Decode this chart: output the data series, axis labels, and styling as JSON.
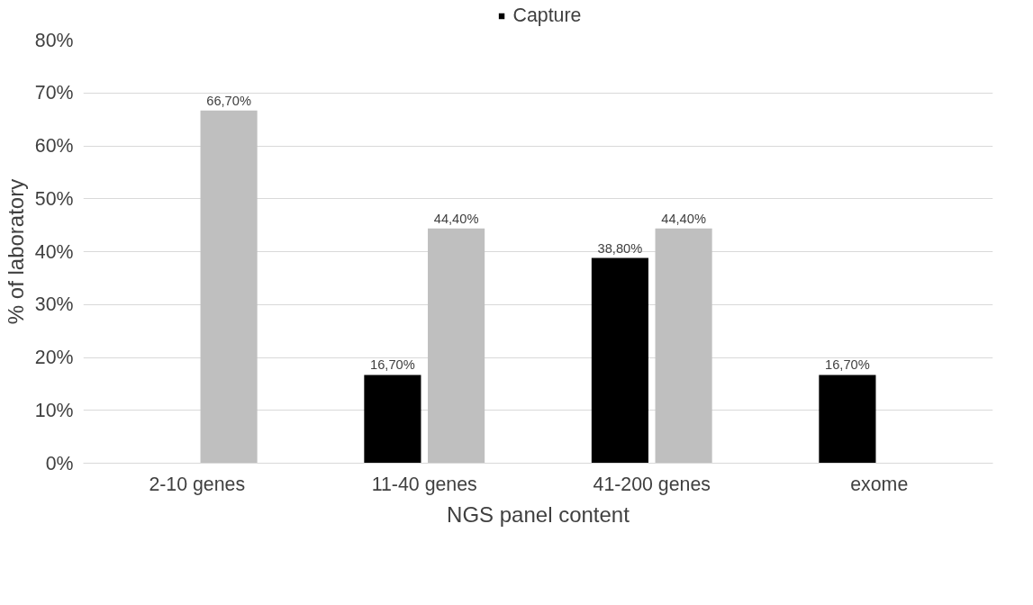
{
  "chart_data": {
    "type": "bar",
    "xlabel": "NGS panel content",
    "ylabel": "% of laboratory",
    "categories": [
      "2-10 genes",
      "11-40 genes",
      "41-200 genes",
      "exome"
    ],
    "series": [
      {
        "name": "Capture",
        "color": "#000000",
        "values": [
          null,
          16.7,
          38.8,
          16.7
        ],
        "value_labels": [
          null,
          "16,70%",
          "38,80%",
          "16,70%"
        ]
      },
      {
        "color": "#bfbfbf",
        "values": [
          66.7,
          44.4,
          44.4,
          null
        ],
        "value_labels": [
          "66,70%",
          "44,40%",
          "44,40%",
          null
        ]
      }
    ],
    "ylim": [
      0,
      80
    ],
    "yticks": [
      {
        "value": 0,
        "label": "0%"
      },
      {
        "value": 10,
        "label": "10%"
      },
      {
        "value": 20,
        "label": "20%"
      },
      {
        "value": 30,
        "label": "30%"
      },
      {
        "value": 40,
        "label": "40%"
      },
      {
        "value": 50,
        "label": "50%"
      },
      {
        "value": 60,
        "label": "60%"
      },
      {
        "value": 70,
        "label": "70%"
      },
      {
        "value": 80,
        "label": "80%"
      }
    ],
    "grid": "y",
    "legend": "top"
  }
}
